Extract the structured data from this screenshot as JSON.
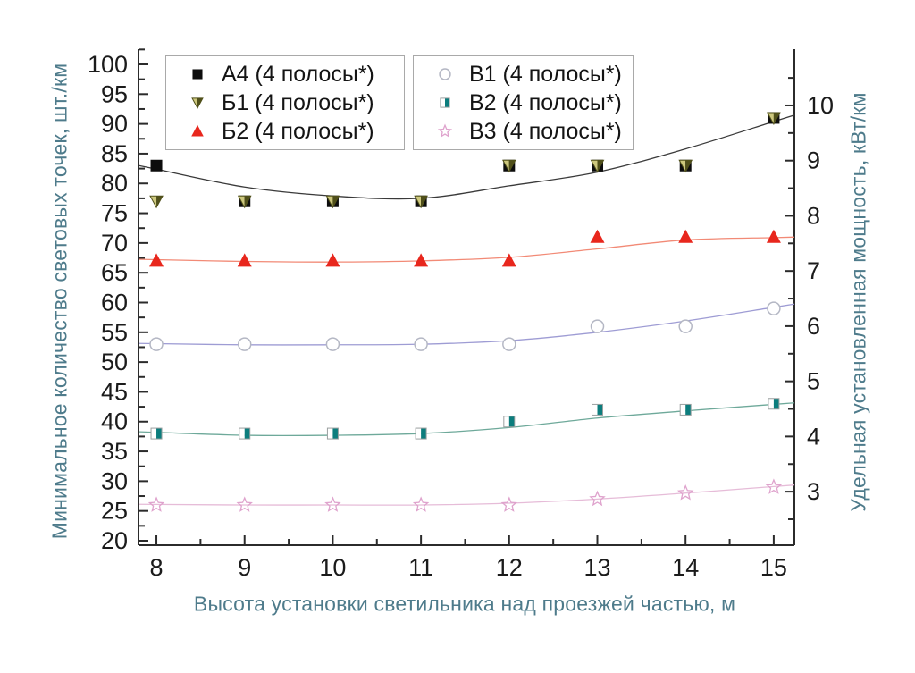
{
  "chart_data": {
    "type": "scatter",
    "title": "",
    "xlabel": "Высота установки светильника над проезжей частью, м",
    "ylabel_left": "Минимальное количество световых точек, шт./км",
    "ylabel_right": "Удельная установленная мощность, кВт/км",
    "x": [
      8,
      9,
      10,
      11,
      12,
      13,
      14,
      15
    ],
    "x_range": [
      7.797,
      15.234
    ],
    "y_left_range": [
      19.25,
      102.55
    ],
    "y_right_range": [
      2.03,
      11.02
    ],
    "x_major_ticks": [
      8,
      9,
      10,
      11,
      12,
      13,
      14,
      15
    ],
    "x_minor_ticks": [
      8.5,
      9.5,
      10.5,
      11.5,
      12.5,
      13.5,
      14.5
    ],
    "y_left_major_ticks": [
      20,
      25,
      30,
      35,
      40,
      45,
      50,
      55,
      60,
      65,
      70,
      75,
      80,
      85,
      90,
      95,
      100
    ],
    "y_left_minor_ticks": [
      22.5,
      27.5,
      32.5,
      37.5,
      42.5,
      47.5,
      52.5,
      57.5,
      62.5,
      67.5,
      72.5,
      77.5,
      82.5,
      87.5,
      92.5,
      97.5,
      102.5
    ],
    "y_right_major_ticks": [
      3,
      4,
      5,
      6,
      7,
      8,
      9,
      10
    ],
    "y_right_minor_ticks": [
      2.5,
      3.5,
      4.5,
      5.5,
      6.5,
      7.5,
      8.5,
      9.5,
      10.5
    ],
    "grid": false,
    "legend_position": "top-inside",
    "series": [
      {
        "name": "А4 (4 полосы*)",
        "marker": "square-filled",
        "marker_color": "#0d0d0d",
        "line_color": "#3a3a3a",
        "values": [
          83,
          77,
          77,
          77,
          83,
          83,
          83,
          91
        ],
        "trend": [
          82.4,
          79.4,
          77.9,
          77.5,
          79.6,
          81.9,
          85.8,
          90.4
        ]
      },
      {
        "name": "Б1 (4 полосы*)",
        "marker": "triangle-down-twotone",
        "marker_color": "#50501a",
        "marker_color2": "#cdc87e",
        "line_color": null,
        "values": [
          77,
          77,
          77,
          77,
          83,
          83,
          83,
          91
        ],
        "trend": null
      },
      {
        "name": "Б2 (4 полосы*)",
        "marker": "triangle-up",
        "marker_color": "#e8271d",
        "line_color": "#f28a76",
        "values": [
          67,
          67,
          67,
          67,
          67,
          71,
          71,
          71
        ],
        "trend": [
          67.2,
          66.9,
          66.8,
          67.0,
          67.6,
          69.0,
          70.5,
          70.9
        ]
      },
      {
        "name": "В1 (4 полосы*)",
        "marker": "circle-open",
        "marker_color": "#b4b7c4",
        "line_color": "#9e9cd4",
        "values": [
          53,
          53,
          53,
          53,
          53,
          56,
          56,
          59
        ],
        "trend": [
          53.1,
          52.9,
          52.9,
          53.0,
          53.6,
          55.0,
          56.9,
          59.2
        ]
      },
      {
        "name": "В2 (4 полосы*)",
        "marker": "square-half",
        "marker_color": "#0c7d7d",
        "line_color": "#6ea99a",
        "values": [
          38,
          38,
          38,
          38,
          40,
          42,
          42,
          43
        ],
        "trend": [
          38.2,
          37.7,
          37.7,
          38.0,
          39.0,
          40.6,
          41.8,
          42.9
        ]
      },
      {
        "name": "В3 (4 полосы*)",
        "marker": "star-open",
        "marker_color": "#dfa3cd",
        "line_color": "#e6bcd8",
        "values": [
          26,
          26,
          26,
          26,
          26,
          27,
          28,
          29
        ],
        "trend": [
          26.1,
          26.0,
          26.0,
          26.0,
          26.3,
          27.0,
          28.0,
          29.1
        ]
      }
    ],
    "legend_groups": [
      {
        "series": [
          0,
          1,
          2
        ]
      },
      {
        "series": [
          3,
          4,
          5
        ]
      }
    ]
  },
  "colors": {
    "background": "#ffffff",
    "axis_line": "#2b2b2b",
    "tick_label": "#1b1b1b",
    "axis_title": "#4e7b8b",
    "legend_border": "#a9a9a9"
  }
}
